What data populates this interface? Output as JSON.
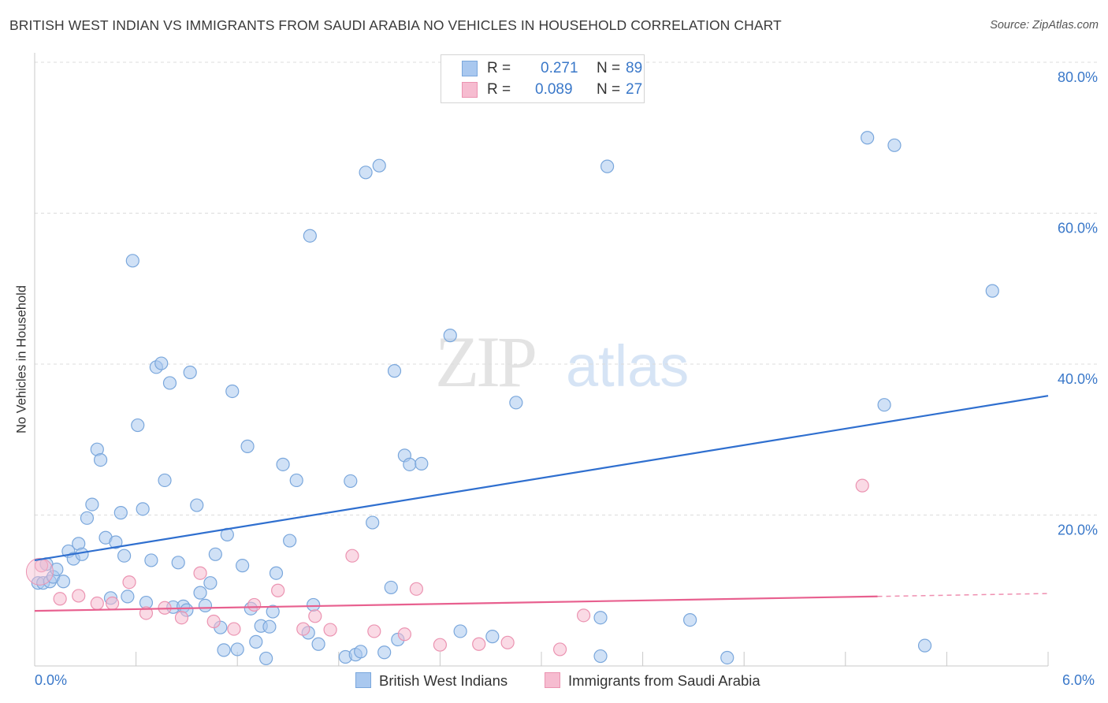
{
  "title": "BRITISH WEST INDIAN VS IMMIGRANTS FROM SAUDI ARABIA NO VEHICLES IN HOUSEHOLD CORRELATION CHART",
  "source": "Source: ZipAtlas.com",
  "watermark": {
    "zip": "ZIP",
    "atlas": "atlas"
  },
  "legend": {
    "series1": {
      "r_label": "R =",
      "r_value": "0.271",
      "n_label": "N =",
      "n_value": "89"
    },
    "series2": {
      "r_label": "R =",
      "r_value": "0.089",
      "n_label": "N =",
      "n_value": "27"
    }
  },
  "colors": {
    "series1_fill": "#a9c8ef",
    "series1_stroke": "#7aa7dc",
    "series1_line": "#2f6fcf",
    "series2_fill": "#f6bcd0",
    "series2_stroke": "#eb93b1",
    "series2_line": "#e8608f",
    "axis_text": "#3a78c9",
    "grid": "#dcdcdc"
  },
  "chart_data": {
    "type": "scatter",
    "title": "BRITISH WEST INDIAN VS IMMIGRANTS FROM SAUDI ARABIA NO VEHICLES IN HOUSEHOLD CORRELATION CHART",
    "xlabel": "",
    "ylabel": "No Vehicles in Household",
    "xlim": [
      0,
      6
    ],
    "ylim": [
      0,
      80
    ],
    "x_tick_labels": [
      "0.0%",
      "6.0%"
    ],
    "y_ticks": [
      20,
      40,
      60,
      80
    ],
    "y_tick_labels": [
      "20.0%",
      "40.0%",
      "60.0%",
      "80.0%"
    ],
    "grid": true,
    "series": [
      {
        "name": "British West Indians",
        "R": 0.271,
        "N": 89,
        "trend": {
          "x": [
            0.0,
            6.0
          ],
          "y": [
            14.0,
            35.8
          ],
          "dashed_from": null
        },
        "points": [
          [
            0.02,
            11.0
          ],
          [
            0.05,
            11.0
          ],
          [
            0.07,
            13.5
          ],
          [
            0.09,
            11.2
          ],
          [
            0.11,
            11.8
          ],
          [
            0.13,
            12.8
          ],
          [
            0.17,
            11.2
          ],
          [
            0.2,
            15.2
          ],
          [
            0.23,
            14.2
          ],
          [
            0.26,
            16.2
          ],
          [
            0.28,
            14.8
          ],
          [
            0.31,
            19.6
          ],
          [
            0.34,
            21.4
          ],
          [
            0.37,
            28.7
          ],
          [
            0.39,
            27.3
          ],
          [
            0.42,
            17.0
          ],
          [
            0.45,
            9.0
          ],
          [
            0.48,
            16.4
          ],
          [
            0.51,
            20.3
          ],
          [
            0.53,
            14.6
          ],
          [
            0.55,
            9.2
          ],
          [
            0.58,
            53.7
          ],
          [
            0.61,
            31.9
          ],
          [
            0.64,
            20.8
          ],
          [
            0.66,
            8.4
          ],
          [
            0.69,
            14.0
          ],
          [
            0.72,
            39.6
          ],
          [
            0.75,
            40.1
          ],
          [
            0.77,
            24.6
          ],
          [
            0.8,
            37.5
          ],
          [
            0.82,
            7.8
          ],
          [
            0.85,
            13.7
          ],
          [
            0.88,
            7.9
          ],
          [
            0.9,
            7.4
          ],
          [
            0.92,
            38.9
          ],
          [
            0.96,
            21.3
          ],
          [
            0.98,
            9.7
          ],
          [
            1.01,
            8.0
          ],
          [
            1.04,
            11.0
          ],
          [
            1.07,
            14.8
          ],
          [
            1.1,
            5.1
          ],
          [
            1.12,
            2.1
          ],
          [
            1.14,
            17.4
          ],
          [
            1.17,
            36.4
          ],
          [
            1.2,
            2.2
          ],
          [
            1.23,
            13.3
          ],
          [
            1.26,
            29.1
          ],
          [
            1.28,
            7.6
          ],
          [
            1.31,
            3.2
          ],
          [
            1.34,
            5.3
          ],
          [
            1.37,
            1.0
          ],
          [
            1.39,
            5.2
          ],
          [
            1.41,
            7.2
          ],
          [
            1.43,
            12.3
          ],
          [
            1.47,
            26.7
          ],
          [
            1.51,
            16.6
          ],
          [
            1.55,
            24.6
          ],
          [
            1.62,
            4.4
          ],
          [
            1.63,
            57.0
          ],
          [
            1.65,
            8.1
          ],
          [
            1.68,
            2.9
          ],
          [
            1.84,
            1.2
          ],
          [
            1.87,
            24.5
          ],
          [
            1.9,
            1.5
          ],
          [
            1.93,
            1.9
          ],
          [
            1.96,
            65.4
          ],
          [
            2.0,
            19.0
          ],
          [
            2.04,
            66.3
          ],
          [
            2.07,
            1.8
          ],
          [
            2.11,
            10.4
          ],
          [
            2.13,
            39.1
          ],
          [
            2.15,
            3.5
          ],
          [
            2.19,
            27.9
          ],
          [
            2.22,
            26.7
          ],
          [
            2.29,
            26.8
          ],
          [
            2.46,
            43.8
          ],
          [
            2.52,
            4.6
          ],
          [
            2.71,
            3.9
          ],
          [
            2.85,
            34.9
          ],
          [
            3.35,
            6.4
          ],
          [
            3.35,
            1.3
          ],
          [
            3.39,
            66.2
          ],
          [
            3.88,
            6.1
          ],
          [
            4.1,
            1.1
          ],
          [
            4.93,
            70.0
          ],
          [
            5.09,
            69.0
          ],
          [
            5.03,
            34.6
          ],
          [
            5.27,
            2.7
          ],
          [
            5.67,
            49.7
          ]
        ]
      },
      {
        "name": "Immigrants from Saudi Arabia",
        "R": 0.089,
        "N": 27,
        "trend": {
          "x": [
            0.0,
            6.0
          ],
          "y": [
            7.3,
            9.6
          ],
          "dashed_from": 4.99
        },
        "points": [
          [
            0.04,
            13.3
          ],
          [
            0.15,
            8.9
          ],
          [
            0.26,
            9.3
          ],
          [
            0.37,
            8.3
          ],
          [
            0.46,
            8.3
          ],
          [
            0.56,
            11.1
          ],
          [
            0.66,
            7.0
          ],
          [
            0.77,
            7.7
          ],
          [
            0.87,
            6.4
          ],
          [
            0.98,
            12.3
          ],
          [
            1.06,
            5.9
          ],
          [
            1.18,
            4.9
          ],
          [
            1.3,
            8.1
          ],
          [
            1.44,
            10.0
          ],
          [
            1.59,
            4.9
          ],
          [
            1.66,
            6.6
          ],
          [
            1.75,
            4.8
          ],
          [
            1.88,
            14.6
          ],
          [
            2.01,
            4.6
          ],
          [
            2.19,
            4.2
          ],
          [
            2.26,
            10.2
          ],
          [
            2.4,
            2.8
          ],
          [
            2.63,
            2.9
          ],
          [
            2.8,
            3.1
          ],
          [
            3.11,
            2.2
          ],
          [
            3.25,
            6.7
          ],
          [
            4.9,
            23.9
          ]
        ]
      }
    ]
  }
}
